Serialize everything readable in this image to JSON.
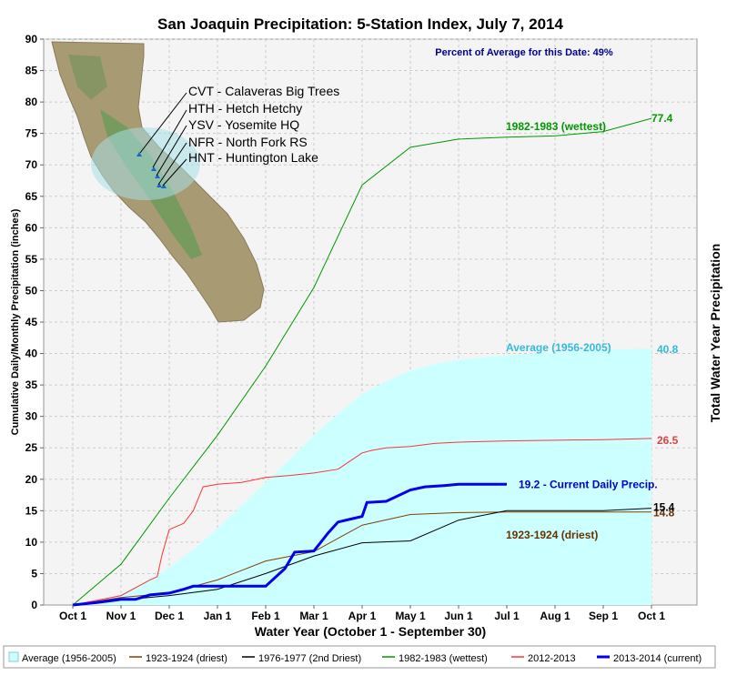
{
  "chart_data": {
    "type": "line",
    "title": "San Joaquin Precipitation: 5-Station Index, July 7, 2014",
    "subtitle": "Percent of Average for this Date: 49%",
    "xlabel": "Water Year (October 1 - September 30)",
    "ylabel": "Cumulative Daily/Monthly Precipitation (inches)",
    "ylabel_right": "Total Water Year Precipitation",
    "x_ticks": [
      "Oct 1",
      "Nov 1",
      "Dec 1",
      "Jan 1",
      "Feb 1",
      "Mar 1",
      "Apr 1",
      "May 1",
      "Jun 1",
      "Jul 1",
      "Aug 1",
      "Sep 1",
      "Oct 1"
    ],
    "y_ticks": [
      "0",
      "5",
      "10",
      "15",
      "20",
      "25",
      "30",
      "35",
      "40",
      "45",
      "50",
      "55",
      "60",
      "65",
      "70",
      "75",
      "80",
      "85",
      "90"
    ],
    "ylim": [
      0,
      90
    ],
    "grid": true,
    "legend_position": "bottom",
    "stations": [
      "CVT - Calaveras Big Trees",
      "HTH - Hetch Hetchy",
      "YSV - Yosemite HQ",
      "NFR - North Fork RS",
      "HNT - Huntington Lake"
    ],
    "series": [
      {
        "name": "Average (1956-2005)",
        "color": "#ccffff",
        "style": "area",
        "x": [
          0,
          0.5,
          1,
          1.5,
          2,
          2.5,
          3,
          3.5,
          4,
          4.5,
          5,
          5.5,
          6,
          6.5,
          7,
          7.5,
          8,
          8.5,
          9,
          9.5,
          10,
          10.5,
          11,
          11.5,
          12
        ],
        "y": [
          0,
          0.6,
          1.7,
          3.5,
          6,
          8.8,
          12.2,
          15.8,
          19.5,
          23.2,
          27,
          30.4,
          33.5,
          35.6,
          37.3,
          38.3,
          39,
          39.4,
          39.7,
          40,
          40.2,
          40.4,
          40.6,
          40.7,
          40.8
        ],
        "end_label": "40.8",
        "label": "Average (1956-2005)"
      },
      {
        "name": "1923-1924 (driest)",
        "color": "#804000",
        "x": [
          0,
          1,
          2,
          3,
          4,
          5,
          6,
          7,
          8,
          9,
          10,
          11,
          12
        ],
        "y": [
          0,
          1.2,
          1.9,
          4,
          7,
          8.5,
          12.7,
          14.4,
          14.7,
          14.8,
          14.8,
          14.8,
          14.8
        ],
        "end_label": "14.8",
        "label": "1923-1924 (driest)"
      },
      {
        "name": "1976-1977 (2nd Driest)",
        "color": "#000000",
        "x": [
          0,
          1,
          2,
          3,
          4,
          5,
          6,
          7,
          8,
          9,
          10,
          11,
          12
        ],
        "y": [
          0,
          0.8,
          1.5,
          2.5,
          5,
          7.8,
          9.9,
          10.2,
          13.5,
          15,
          15,
          15,
          15.4
        ],
        "end_label": "15.4"
      },
      {
        "name": "1982-1983 (wettest)",
        "color": "#009900",
        "x": [
          0,
          1,
          2,
          3,
          4,
          5,
          6,
          7,
          8,
          9,
          10,
          11,
          12
        ],
        "y": [
          0,
          6.5,
          17,
          27,
          38,
          50.5,
          66.8,
          72.8,
          74.1,
          74.4,
          74.6,
          75.3,
          77.4
        ],
        "end_label": "77.4",
        "label": "1982-1983 (wettest)"
      },
      {
        "name": "2012-2013",
        "color": "#ff3333",
        "x": [
          0,
          1,
          1.6,
          1.75,
          1.85,
          2,
          2.3,
          2.5,
          2.7,
          3,
          3.5,
          4,
          4.5,
          5,
          5.5,
          6,
          6.2,
          6.5,
          7,
          7.5,
          8,
          9,
          10,
          11,
          12
        ],
        "y": [
          0,
          1.5,
          4,
          4.5,
          8,
          12,
          13,
          15,
          18.8,
          19.2,
          19.5,
          20.3,
          20.6,
          21,
          21.6,
          24.2,
          24.6,
          25,
          25.2,
          25.7,
          25.9,
          26.1,
          26.2,
          26.3,
          26.5
        ],
        "end_label": "26.5"
      },
      {
        "name": "2013-2014 (current)",
        "color": "#0000ee",
        "width": 3,
        "x": [
          0,
          0.5,
          1,
          1.3,
          1.6,
          2,
          2.3,
          2.5,
          3,
          3.5,
          4,
          4.4,
          4.6,
          5,
          5.3,
          5.5,
          6,
          6.1,
          6.5,
          7,
          7.3,
          7.7,
          8,
          8.5,
          9
        ],
        "y": [
          0,
          0.4,
          0.9,
          0.9,
          1.6,
          1.9,
          2.5,
          3,
          3,
          3,
          3,
          5.8,
          8.4,
          8.6,
          11.5,
          13.2,
          14.1,
          16.3,
          16.5,
          18.3,
          18.8,
          19,
          19.2,
          19.2,
          19.2
        ],
        "end_label": "19.2 -  Current Daily Precip."
      }
    ]
  }
}
